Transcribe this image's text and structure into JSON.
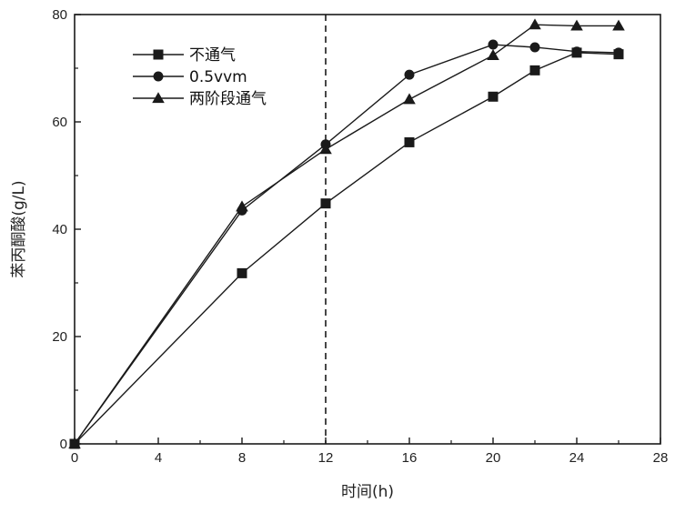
{
  "chart_data": {
    "type": "line",
    "xlabel": "时间(h)",
    "ylabel": "苯丙酮酸(g/L)",
    "xlim": [
      0,
      28
    ],
    "ylim": [
      0,
      80
    ],
    "xticks": [
      0,
      4,
      8,
      12,
      16,
      20,
      24,
      28
    ],
    "yticks": [
      0,
      20,
      40,
      60,
      80
    ],
    "grid": false,
    "legend_position": "top-left",
    "reference_line": {
      "x": 12,
      "style": "dashed"
    },
    "series": [
      {
        "name": "不通气",
        "marker": "square",
        "x": [
          0,
          8,
          12,
          16,
          20,
          22,
          24,
          26
        ],
        "y": [
          0,
          31.8,
          44.8,
          56.2,
          64.7,
          69.6,
          72.9,
          72.6
        ]
      },
      {
        "name": "0.5vvm",
        "marker": "circle",
        "x": [
          0,
          8,
          12,
          16,
          20,
          22,
          24,
          26
        ],
        "y": [
          0,
          43.5,
          55.8,
          68.8,
          74.4,
          73.9,
          73.1,
          72.9
        ]
      },
      {
        "name": "两阶段通气",
        "marker": "triangle",
        "x": [
          0,
          8,
          12,
          16,
          20,
          22,
          24,
          26
        ],
        "y": [
          0,
          44.2,
          54.9,
          64.2,
          72.4,
          78.1,
          77.9,
          77.9
        ]
      }
    ],
    "line_color": "#1a1a1a"
  }
}
